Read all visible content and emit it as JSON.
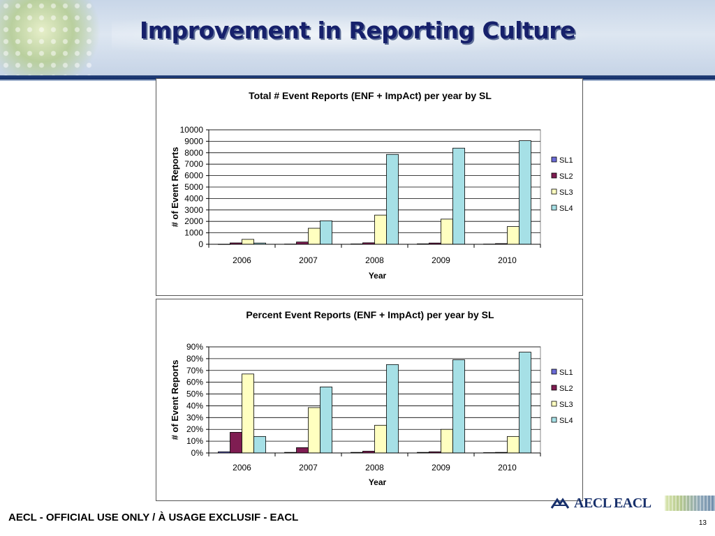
{
  "slide": {
    "title": "Improvement in Reporting Culture",
    "footer": "AECL - OFFICIAL USE ONLY / À USAGE EXCLUSIF - EACL",
    "page_number": "13",
    "logo_text": "AECL EACL"
  },
  "colors": {
    "title": "#16206b",
    "banner_rule": "#233f78",
    "SL1": "#6b6bd6",
    "SL2": "#7f1d52",
    "SL3": "#ffffc0",
    "SL4": "#a6e0e6"
  },
  "chart_data": [
    {
      "type": "bar",
      "title": "Total # Event Reports (ENF + ImpAct) per year by SL",
      "xlabel": "Year",
      "ylabel": "# of Event Reports",
      "categories": [
        "2006",
        "2007",
        "2008",
        "2009",
        "2010"
      ],
      "ylim": [
        0,
        10000
      ],
      "yticks": [
        "0",
        "1000",
        "2000",
        "3000",
        "4000",
        "5000",
        "6000",
        "7000",
        "8000",
        "9000",
        "10000"
      ],
      "ytick_values": [
        0,
        1000,
        2000,
        3000,
        4000,
        5000,
        6000,
        7000,
        8000,
        9000,
        10000
      ],
      "legend_position": "right",
      "grid": true,
      "series": [
        {
          "name": "SL1",
          "values": [
            10,
            20,
            30,
            40,
            20
          ]
        },
        {
          "name": "SL2",
          "values": [
            120,
            200,
            130,
            110,
            60
          ]
        },
        {
          "name": "SL3",
          "values": [
            430,
            1400,
            2550,
            2200,
            1550
          ]
        },
        {
          "name": "SL4",
          "values": [
            110,
            2050,
            7850,
            8400,
            9050
          ]
        }
      ]
    },
    {
      "type": "bar",
      "title": "Percent Event Reports (ENF + ImpAct) per year by SL",
      "xlabel": "Year",
      "ylabel": "# of Event Reports",
      "categories": [
        "2006",
        "2007",
        "2008",
        "2009",
        "2010"
      ],
      "ylim": [
        0,
        90
      ],
      "yticks": [
        "0%",
        "10%",
        "20%",
        "30%",
        "40%",
        "50%",
        "60%",
        "70%",
        "80%",
        "90%"
      ],
      "ytick_values": [
        0,
        10,
        20,
        30,
        40,
        50,
        60,
        70,
        80,
        90
      ],
      "legend_position": "right",
      "grid": true,
      "series": [
        {
          "name": "SL1",
          "values": [
            1,
            0.5,
            0.5,
            0.5,
            0.3
          ]
        },
        {
          "name": "SL2",
          "values": [
            17.5,
            4.5,
            1.5,
            1.0,
            0.5
          ]
        },
        {
          "name": "SL3",
          "values": [
            67,
            38.5,
            23.5,
            20,
            14
          ]
        },
        {
          "name": "SL4",
          "values": [
            14,
            56,
            75,
            79,
            85.5
          ]
        }
      ]
    }
  ]
}
